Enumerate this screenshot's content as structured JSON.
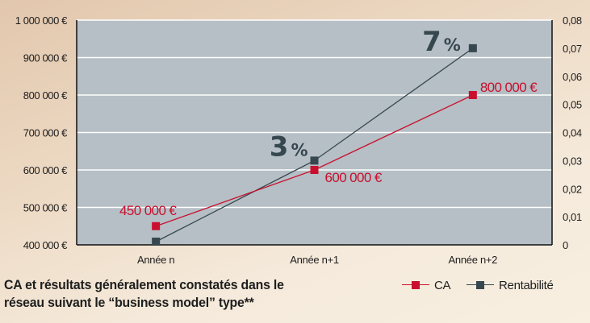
{
  "chart_data": {
    "type": "line",
    "title_lines": [
      "CA et résultats généralement constatés dans le",
      "réseau suivant le “business model” type**"
    ],
    "xlabel": "",
    "ylabel": "",
    "categories": [
      "Année n",
      "Année n+1",
      "Année n+2"
    ],
    "series": [
      {
        "name": "CA",
        "axis": "left",
        "color": "#c8102e",
        "values": [
          450000,
          600000,
          800000
        ],
        "data_labels": [
          {
            "main": "450 000 €",
            "unit": ""
          },
          {
            "main": "600 000 €",
            "unit": ""
          },
          {
            "main": "800 000 €",
            "unit": ""
          }
        ]
      },
      {
        "name": "Rentabilité",
        "axis": "right",
        "color": "#37474f",
        "values": [
          0,
          0.03,
          0.07
        ],
        "data_labels": [
          null,
          {
            "main": "3",
            "unit": "%"
          },
          {
            "main": "7",
            "unit": "%"
          }
        ]
      }
    ],
    "y_left": {
      "range": [
        400000,
        1000000
      ],
      "ticks": [
        400000,
        500000,
        600000,
        700000,
        800000,
        900000,
        1000000
      ],
      "tick_labels": [
        "400 000 €",
        "500 000 €",
        "600 000 €",
        "700 000 €",
        "800 000 €",
        "900 000 €",
        "1 000 000 €"
      ]
    },
    "y_right": {
      "range": [
        0,
        0.08
      ],
      "ticks": [
        0,
        0.01,
        0.02,
        0.03,
        0.04,
        0.05,
        0.06,
        0.07,
        0.08
      ],
      "tick_labels": [
        "0",
        "0,01",
        "0,02",
        "0,03",
        "0,04",
        "0,05",
        "0,06",
        "0,07",
        "0,08"
      ]
    },
    "grid": true,
    "legend": {
      "position": "bottom-right",
      "entries": [
        {
          "label": "CA",
          "color": "#c8102e"
        },
        {
          "label": "Rentabilité",
          "color": "#37474f"
        }
      ]
    },
    "colors": {
      "plot_background": "#b5bfc5",
      "grid": "#ffffff",
      "axis": "#111111"
    }
  }
}
